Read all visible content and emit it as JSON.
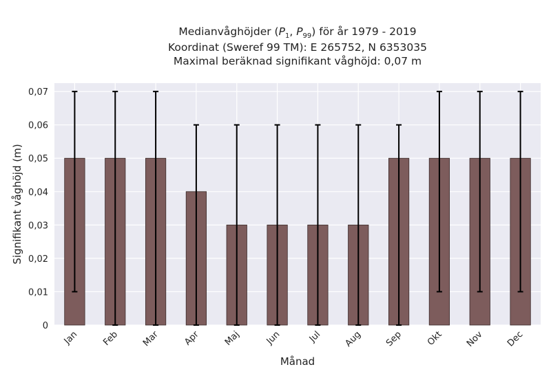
{
  "chart_data": {
    "type": "bar",
    "title_lines": [
      "Medianvåghöjder (P1, P99) för år 1979 - 2019",
      "Koordinat (Sweref 99 TM): E 265752, N 6353035",
      "Maximal beräknad signifikant våghöjd: 0,07 m"
    ],
    "title_parts": {
      "prefix": "Medianvåghöjder (",
      "p1_base": "P",
      "p1_sub": "1",
      "sep": ", ",
      "p99_base": "P",
      "p99_sub": "99",
      "suffix": ") för år 1979 - 2019"
    },
    "xlabel": "Månad",
    "ylabel": "Signifikant våghöjd (m)",
    "categories": [
      "Jan",
      "Feb",
      "Mar",
      "Apr",
      "Maj",
      "Jun",
      "Jul",
      "Aug",
      "Sep",
      "Okt",
      "Nov",
      "Dec"
    ],
    "values": [
      0.05,
      0.05,
      0.05,
      0.04,
      0.03,
      0.03,
      0.03,
      0.03,
      0.05,
      0.05,
      0.05,
      0.05
    ],
    "p1": [
      0.01,
      0.0,
      0.0,
      0.0,
      0.0,
      0.0,
      0.0,
      0.0,
      0.0,
      0.01,
      0.01,
      0.01
    ],
    "p99": [
      0.07,
      0.07,
      0.07,
      0.06,
      0.06,
      0.06,
      0.06,
      0.06,
      0.06,
      0.07,
      0.07,
      0.07
    ],
    "ylim": [
      0,
      0.0725
    ],
    "yticks": [
      0,
      0.01,
      0.02,
      0.03,
      0.04,
      0.05,
      0.06,
      0.07
    ],
    "ytick_labels": [
      "0",
      "0,01",
      "0,02",
      "0,03",
      "0,04",
      "0,05",
      "0,06",
      "0,07"
    ],
    "grid": true,
    "colors": {
      "bar": "#7d5c5c",
      "bar_edge": "#3a2a2a",
      "errorbar": "#000000",
      "plot_background": "#eaeaf2",
      "grid": "#ffffff"
    }
  }
}
